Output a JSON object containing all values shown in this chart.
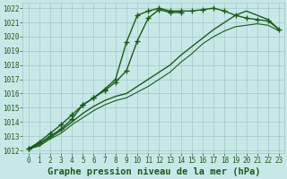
{
  "title": "Graphe pression niveau de la mer (hPa)",
  "x_values": [
    0,
    1,
    2,
    3,
    4,
    5,
    6,
    7,
    8,
    9,
    10,
    11,
    12,
    13,
    14,
    15,
    16,
    17,
    18,
    19,
    20,
    21,
    22,
    23
  ],
  "series": [
    {
      "name": "marked_curve",
      "y": [
        1012.1,
        1012.6,
        1013.2,
        1013.8,
        1014.5,
        1015.2,
        1015.7,
        1016.3,
        1017.0,
        1019.6,
        1021.5,
        1021.8,
        1022.0,
        1021.8,
        1021.8,
        1021.8,
        1021.9,
        1022.0,
        1021.8,
        1021.5,
        1021.3,
        1021.2,
        1021.1,
        1020.5
      ],
      "marker": "+",
      "markersize": 4,
      "linewidth": 1.0,
      "linestyle": "-"
    },
    {
      "name": "steep_curve",
      "y": [
        1012.1,
        1012.5,
        1013.0,
        1013.5,
        1014.2,
        1015.2,
        1015.7,
        1016.2,
        1016.8,
        1017.6,
        1019.7,
        1021.3,
        1021.9,
        1021.7,
        1021.7,
        null,
        null,
        null,
        null,
        null,
        null,
        null,
        null,
        null
      ],
      "marker": "+",
      "markersize": 4,
      "linewidth": 1.0,
      "linestyle": "-"
    },
    {
      "name": "slow_upper",
      "y": [
        1012.1,
        1012.4,
        1012.9,
        1013.4,
        1014.0,
        1014.6,
        1015.1,
        1015.5,
        1015.8,
        1016.0,
        1016.5,
        1017.0,
        1017.5,
        1018.0,
        1018.7,
        1019.3,
        1019.9,
        1020.5,
        1021.0,
        1021.5,
        1021.8,
        1021.5,
        1021.2,
        1020.5
      ],
      "marker": null,
      "markersize": 0,
      "linewidth": 1.0,
      "linestyle": "-"
    },
    {
      "name": "slow_lower",
      "y": [
        1012.1,
        1012.3,
        1012.8,
        1013.2,
        1013.8,
        1014.3,
        1014.8,
        1015.2,
        1015.5,
        1015.7,
        1016.1,
        1016.5,
        1017.0,
        1017.5,
        1018.2,
        1018.8,
        1019.5,
        1020.0,
        1020.4,
        1020.7,
        1020.8,
        1020.9,
        1020.8,
        1020.4
      ],
      "marker": null,
      "markersize": 0,
      "linewidth": 0.8,
      "linestyle": "-"
    }
  ],
  "ylim": [
    1012,
    1022
  ],
  "xlim": [
    0,
    23
  ],
  "yticks": [
    1012,
    1013,
    1014,
    1015,
    1016,
    1017,
    1018,
    1019,
    1020,
    1021,
    1022
  ],
  "xticks": [
    0,
    1,
    2,
    3,
    4,
    5,
    6,
    7,
    8,
    9,
    10,
    11,
    12,
    13,
    14,
    15,
    16,
    17,
    18,
    19,
    20,
    21,
    22,
    23
  ],
  "line_color": "#1a5c1a",
  "bg_color": "#c8e8e8",
  "grid_color": "#a0c8c8",
  "title_color": "#1a5c1a",
  "tick_color": "#1a5c1a",
  "tick_fontsize": 5.5,
  "title_fontsize": 7.5
}
